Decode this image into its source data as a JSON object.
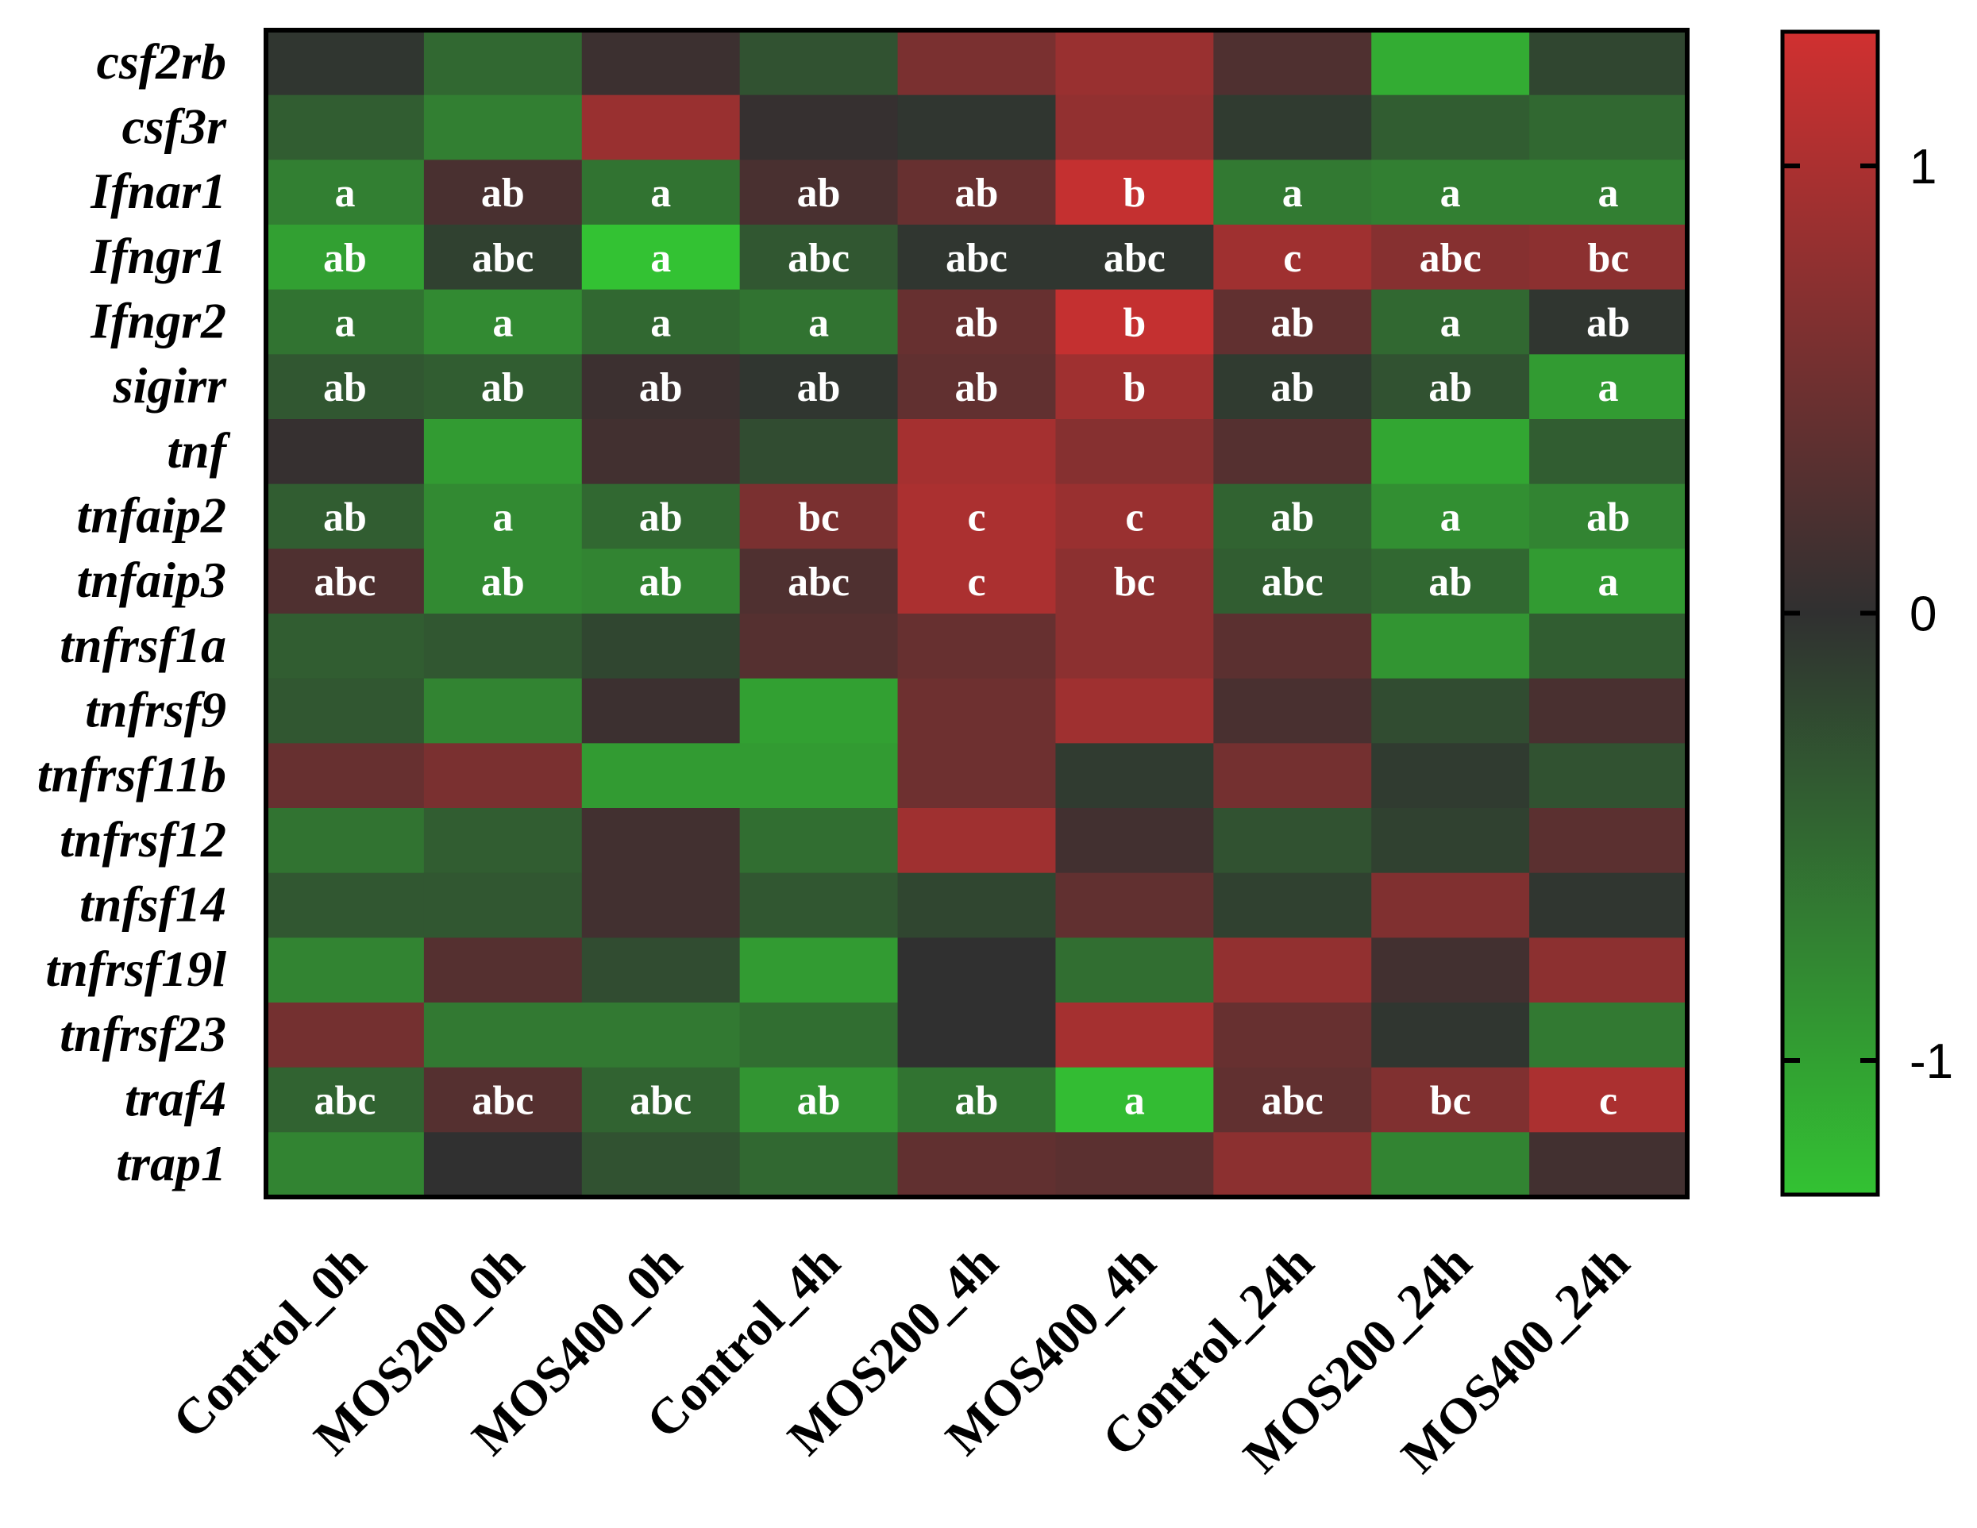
{
  "chart_data": {
    "type": "heatmap",
    "columns": [
      "Control_0h",
      "MOS200_0h",
      "MOS400_0h",
      "Control_4h",
      "MOS200_4h",
      "MOS400_4h",
      "Control_24h",
      "MOS200_24h",
      "MOS400_24h"
    ],
    "rows": [
      {
        "gene": "csf2rb",
        "values": [
          -0.05,
          -0.5,
          0.1,
          -0.3,
          0.6,
          0.85,
          0.25,
          -1.1,
          -0.2
        ],
        "letters": []
      },
      {
        "gene": "csf3r",
        "values": [
          -0.4,
          -0.7,
          0.85,
          0.05,
          -0.05,
          0.8,
          -0.1,
          -0.4,
          -0.5
        ],
        "letters": []
      },
      {
        "gene": "Ifnar1",
        "values": [
          -0.7,
          0.2,
          -0.6,
          0.2,
          0.45,
          1.2,
          -0.65,
          -0.7,
          -0.7
        ],
        "letters": [
          "a",
          "ab",
          "a",
          "ab",
          "ab",
          "b",
          "a",
          "a",
          "a"
        ]
      },
      {
        "gene": "Ifngr1",
        "values": [
          -1.0,
          -0.15,
          -1.3,
          -0.35,
          -0.05,
          -0.05,
          0.9,
          0.7,
          0.75
        ],
        "letters": [
          "ab",
          "abc",
          "a",
          "abc",
          "abc",
          "abc",
          "c",
          "abc",
          "bc"
        ]
      },
      {
        "gene": "Ifngr2",
        "values": [
          -0.6,
          -0.8,
          -0.5,
          -0.6,
          0.45,
          1.2,
          0.4,
          -0.5,
          -0.05
        ],
        "letters": [
          "a",
          "a",
          "a",
          "a",
          "ab",
          "b",
          "ab",
          "a",
          "ab"
        ]
      },
      {
        "gene": "sigirr",
        "values": [
          -0.35,
          -0.4,
          0.1,
          -0.05,
          0.4,
          0.9,
          -0.1,
          -0.3,
          -0.95
        ],
        "letters": [
          "ab",
          "ab",
          "ab",
          "ab",
          "ab",
          "b",
          "ab",
          "ab",
          "a"
        ]
      },
      {
        "gene": "tnf",
        "values": [
          0.05,
          -0.95,
          0.15,
          -0.25,
          0.95,
          0.7,
          0.3,
          -1.05,
          -0.4
        ],
        "letters": []
      },
      {
        "gene": "tnfaip2",
        "values": [
          -0.4,
          -0.8,
          -0.5,
          0.6,
          1.0,
          0.85,
          -0.45,
          -0.85,
          -0.75
        ],
        "letters": [
          "ab",
          "a",
          "ab",
          "bc",
          "c",
          "c",
          "ab",
          "a",
          "ab"
        ]
      },
      {
        "gene": "tnfaip3",
        "values": [
          0.25,
          -0.8,
          -0.75,
          0.25,
          1.0,
          0.75,
          -0.4,
          -0.5,
          -0.95
        ],
        "letters": [
          "abc",
          "ab",
          "ab",
          "abc",
          "c",
          "bc",
          "abc",
          "ab",
          "a"
        ]
      },
      {
        "gene": "tnfrsf1a",
        "values": [
          -0.4,
          -0.35,
          -0.2,
          0.3,
          0.45,
          0.75,
          0.35,
          -0.9,
          -0.4
        ],
        "letters": []
      },
      {
        "gene": "tnfrsf9",
        "values": [
          -0.35,
          -0.75,
          0.1,
          -1.0,
          0.5,
          0.9,
          0.2,
          -0.25,
          0.2
        ],
        "letters": []
      },
      {
        "gene": "tnfrsf11b",
        "values": [
          0.45,
          0.6,
          -0.95,
          -0.95,
          0.5,
          -0.1,
          0.55,
          -0.1,
          -0.3
        ],
        "letters": []
      },
      {
        "gene": "tnfrsf12",
        "values": [
          -0.6,
          -0.4,
          0.15,
          -0.55,
          0.9,
          0.15,
          -0.3,
          -0.15,
          0.35
        ],
        "letters": []
      },
      {
        "gene": "tnfsf14",
        "values": [
          -0.35,
          -0.35,
          0.15,
          -0.35,
          -0.2,
          0.4,
          -0.15,
          0.65,
          -0.05
        ],
        "letters": []
      },
      {
        "gene": "tnfrsf19l",
        "values": [
          -0.75,
          0.3,
          -0.25,
          -0.95,
          0.0,
          -0.55,
          0.8,
          0.15,
          0.75
        ],
        "letters": []
      },
      {
        "gene": "tnfrsf23",
        "values": [
          0.55,
          -0.65,
          -0.65,
          -0.55,
          0.0,
          0.95,
          0.45,
          -0.05,
          -0.65
        ],
        "letters": []
      },
      {
        "gene": "traf4",
        "values": [
          -0.45,
          0.3,
          -0.45,
          -0.9,
          -0.6,
          -1.25,
          0.4,
          0.65,
          1.0
        ],
        "letters": [
          "abc",
          "abc",
          "abc",
          "ab",
          "ab",
          "a",
          "abc",
          "bc",
          "c"
        ]
      },
      {
        "gene": "trap1",
        "values": [
          -0.75,
          0.0,
          -0.3,
          -0.5,
          0.4,
          0.35,
          0.75,
          -0.75,
          0.15
        ],
        "letters": []
      }
    ],
    "colorscale": {
      "low": "#33c233",
      "mid": "#303030",
      "high": "#d03030",
      "min": -1.3,
      "max": 1.3
    },
    "colorbar_ticks": [
      "1",
      "0",
      "-1"
    ],
    "colorbar_tick_values": [
      1,
      0,
      -1
    ]
  }
}
